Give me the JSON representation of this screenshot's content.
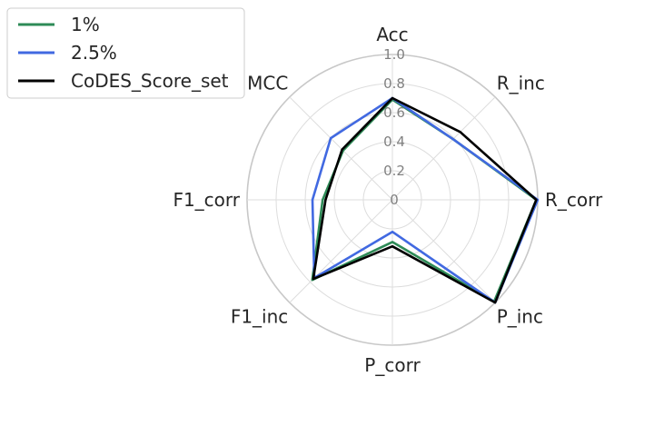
{
  "chart_data": {
    "type": "radar",
    "axes": [
      "Acc",
      "R_inc",
      "R_corr",
      "P_inc",
      "P_corr",
      "F1_inc",
      "F1_corr",
      "MCC"
    ],
    "rticks": [
      "0",
      "0.2",
      "0.4",
      "0.6",
      "0.8",
      "1.0"
    ],
    "rlim": [
      0,
      1.0
    ],
    "grid": true,
    "legend_position": "top-left",
    "series": [
      {
        "name": "1%",
        "color": "#2e8b57",
        "values": [
          0.69,
          0.59,
          0.99,
          0.99,
          0.29,
          0.78,
          0.48,
          0.48
        ]
      },
      {
        "name": "2.5%",
        "color": "#4169e1",
        "values": [
          0.7,
          0.59,
          1.0,
          1.0,
          0.22,
          0.76,
          0.55,
          0.6
        ]
      },
      {
        "name": "CoDES_Score_set",
        "color": "#000000",
        "values": [
          0.7,
          0.66,
          0.99,
          1.0,
          0.32,
          0.77,
          0.46,
          0.49
        ]
      }
    ]
  }
}
